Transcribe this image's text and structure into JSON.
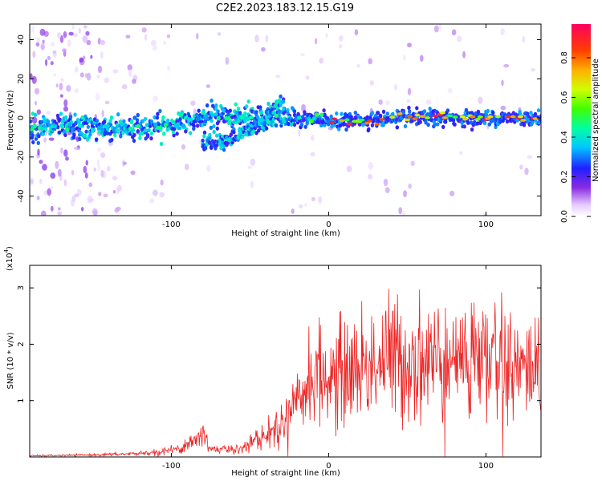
{
  "title": "C2E2.2023.183.12.15.G19",
  "chart_data": [
    {
      "type": "heatmap",
      "xlabel": "Height of straight line (km)",
      "ylabel": "Frequency (Hz)",
      "xlim": [
        -190,
        135
      ],
      "ylim": [
        -50,
        48
      ],
      "xticks": [
        -100,
        0,
        100
      ],
      "yticks": [
        -40,
        -20,
        0,
        20,
        40
      ],
      "colorbar": {
        "label": "Normalized spectral amplitude",
        "range": [
          0.0,
          0.97
        ],
        "ticks": [
          0.0,
          0.2,
          0.4,
          0.6,
          0.8
        ],
        "tick_labels": [
          "0.0",
          "0.2",
          "0.4",
          "0.6",
          "0.8"
        ]
      },
      "ridges": [
        {
          "x": [
            -190,
            -150,
            -120,
            -100,
            -80,
            -60,
            -40,
            -25,
            -15,
            0,
            50,
            135
          ],
          "y": [
            -5,
            -5,
            -5,
            -4,
            1,
            1,
            -1,
            0,
            0,
            -2,
            0,
            0
          ]
        },
        {
          "x": [
            -80,
            -60,
            -45,
            -30
          ],
          "y": [
            -14,
            -10,
            -4,
            8
          ]
        }
      ]
    },
    {
      "type": "line",
      "xlabel": "Height of straight line (km)",
      "ylabel": "SNR (10 * v/v)",
      "multiplier_label": "(x10",
      "multiplier_exp": "4",
      "xlim": [
        -190,
        135
      ],
      "ylim": [
        0,
        3.4
      ],
      "xticks": [
        -100,
        0,
        100
      ],
      "yticks": [
        1,
        2,
        3
      ],
      "series": [
        {
          "color": "#ee2222",
          "x": [
            -190,
            -160,
            -130,
            -110,
            -95,
            -85,
            -80,
            -75,
            -60,
            -50,
            -35,
            -25,
            -15,
            -10,
            0,
            20,
            40,
            60,
            80,
            100,
            120,
            135
          ],
          "y": [
            0.02,
            0.03,
            0.05,
            0.08,
            0.15,
            0.3,
            0.4,
            0.15,
            0.12,
            0.25,
            0.45,
            0.7,
            1.2,
            1.5,
            1.35,
            1.6,
            1.75,
            1.7,
            1.7,
            1.75,
            1.55,
            1.6
          ]
        }
      ]
    }
  ],
  "colors": {
    "signal": "#ee2222",
    "axis": "#000000"
  }
}
